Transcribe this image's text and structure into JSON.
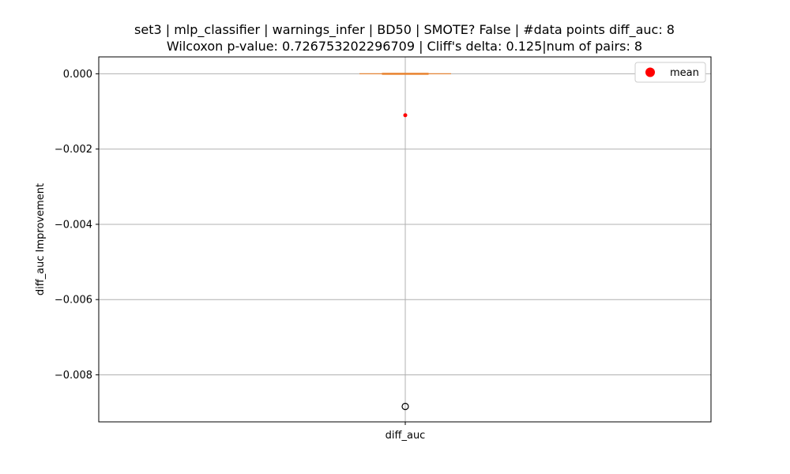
{
  "chart_data": {
    "type": "box",
    "title_line1": "set3 | mlp_classifier | warnings_infer | BD50 | SMOTE? False | #data points diff_auc: 8",
    "title_line2": "Wilcoxon p-value: 0.726753202296709 | Cliff's delta: 0.125|num of pairs: 8",
    "xlabel": "",
    "ylabel": "diff_auc Improvement",
    "categories": [
      "diff_auc"
    ],
    "ylim": [
      -0.00925,
      0.00045
    ],
    "yticks": [
      0.0,
      -0.002,
      -0.004,
      -0.006,
      -0.008
    ],
    "ytick_labels": [
      "0.000",
      "−0.002",
      "−0.004",
      "−0.006",
      "−0.008"
    ],
    "grid": true,
    "legend": {
      "position": "top-right",
      "entries": [
        "mean"
      ]
    },
    "boxes": [
      {
        "name": "diff_auc",
        "q1": 0.0,
        "median": 0.0,
        "q3": 0.0,
        "whisker_low": 0.0,
        "whisker_high": 0.0,
        "mean": -0.0011,
        "outliers": [
          -0.00884
        ]
      }
    ],
    "colors": {
      "box": "#e8822f",
      "median": "#e8822f",
      "mean": "#ff0000",
      "grid": "#b0b0b0",
      "outlier": "#000000"
    }
  }
}
